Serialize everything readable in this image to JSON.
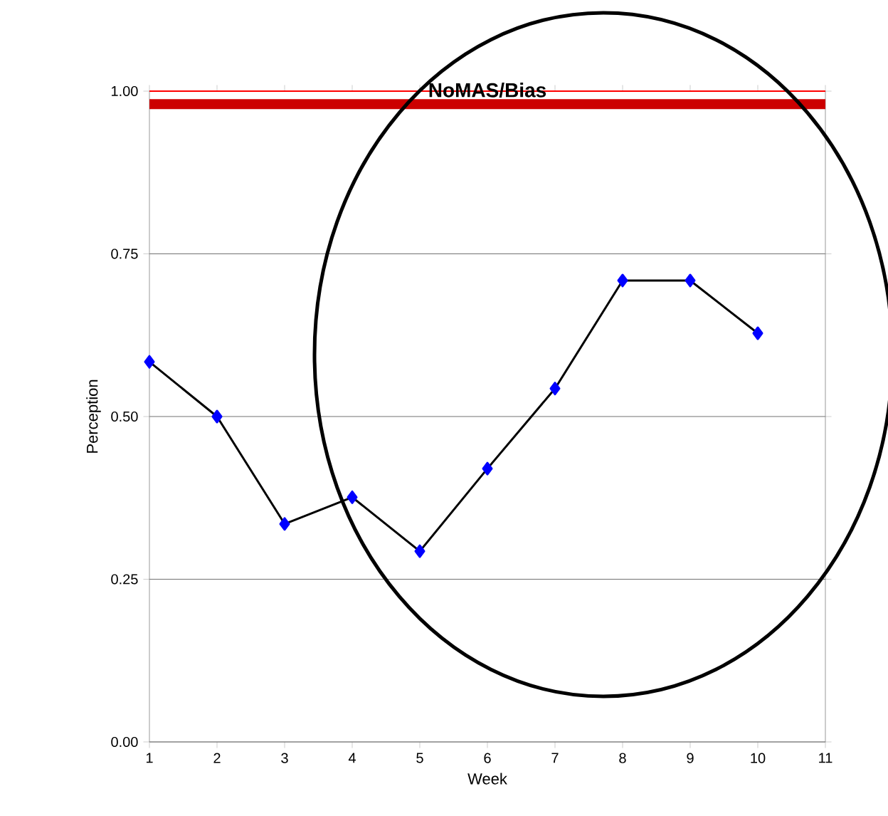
{
  "chart_data": {
    "type": "line",
    "title": "NoMAS/Bias",
    "xlabel": "Week",
    "ylabel": "Perception",
    "x": [
      1,
      2,
      3,
      4,
      5,
      6,
      7,
      8,
      9,
      10
    ],
    "series": [
      {
        "color": "#0000ff",
        "values": [
          0.584,
          0.5,
          0.335,
          0.376,
          0.293,
          0.42,
          0.543,
          0.709,
          0.709,
          0.628
        ]
      }
    ],
    "xlim": [
      1,
      11
    ],
    "xticks": [
      1,
      2,
      3,
      4,
      5,
      6,
      7,
      8,
      9,
      10,
      11
    ],
    "ylim": [
      0,
      1
    ],
    "yticks": [
      {
        "value": 0,
        "label": "0.00"
      },
      {
        "value": 0.25,
        "label": "0.25"
      },
      {
        "value": 0.5,
        "label": "0.50"
      },
      {
        "value": 0.75,
        "label": "0.75"
      },
      {
        "value": 1,
        "label": "1.00"
      }
    ],
    "grid": "y",
    "marker": "diamond",
    "line_style": "solid",
    "ref_lines": [
      {
        "axis": "y",
        "value": 1,
        "color": "#ff0000"
      },
      {
        "axis": "y",
        "value": 0.98,
        "color": "#cc0000"
      }
    ]
  }
}
